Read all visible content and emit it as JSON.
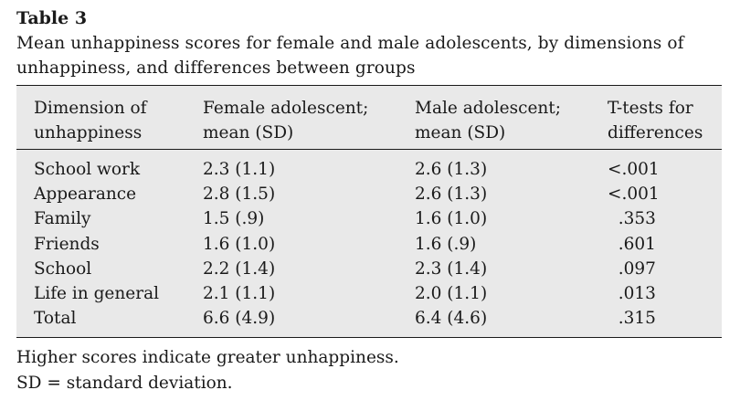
{
  "table": {
    "label": "Table 3",
    "caption": "Mean unhappiness scores for female and male adolescents, by dimensions of unhappiness, and differences between groups",
    "headers": [
      [
        "Dimension of",
        "unhappiness"
      ],
      [
        "Female adolescent;",
        "mean (SD)"
      ],
      [
        "Male adolescent;",
        "mean (SD)"
      ],
      [
        "T-tests for",
        "differences"
      ]
    ],
    "rows": [
      [
        "School work",
        "2.3 (1.1)",
        "2.6 (1.3)",
        "<.001"
      ],
      [
        "Appearance",
        "2.8 (1.5)",
        "2.6 (1.3)",
        "<.001"
      ],
      [
        "Family",
        "1.5 (.9)",
        "1.6 (1.0)",
        "  .353"
      ],
      [
        "Friends",
        "1.6 (1.0)",
        "1.6 (.9)",
        "  .601"
      ],
      [
        "School",
        "2.2 (1.4)",
        "2.3 (1.4)",
        "  .097"
      ],
      [
        "Life in general",
        "2.1 (1.1)",
        "2.0 (1.1)",
        "  .013"
      ],
      [
        "Total",
        "6.6 (4.9)",
        "6.4 (4.6)",
        "  .315"
      ]
    ],
    "footnotes": [
      "Higher scores indicate greater unhappiness.",
      "SD = standard deviation."
    ]
  }
}
